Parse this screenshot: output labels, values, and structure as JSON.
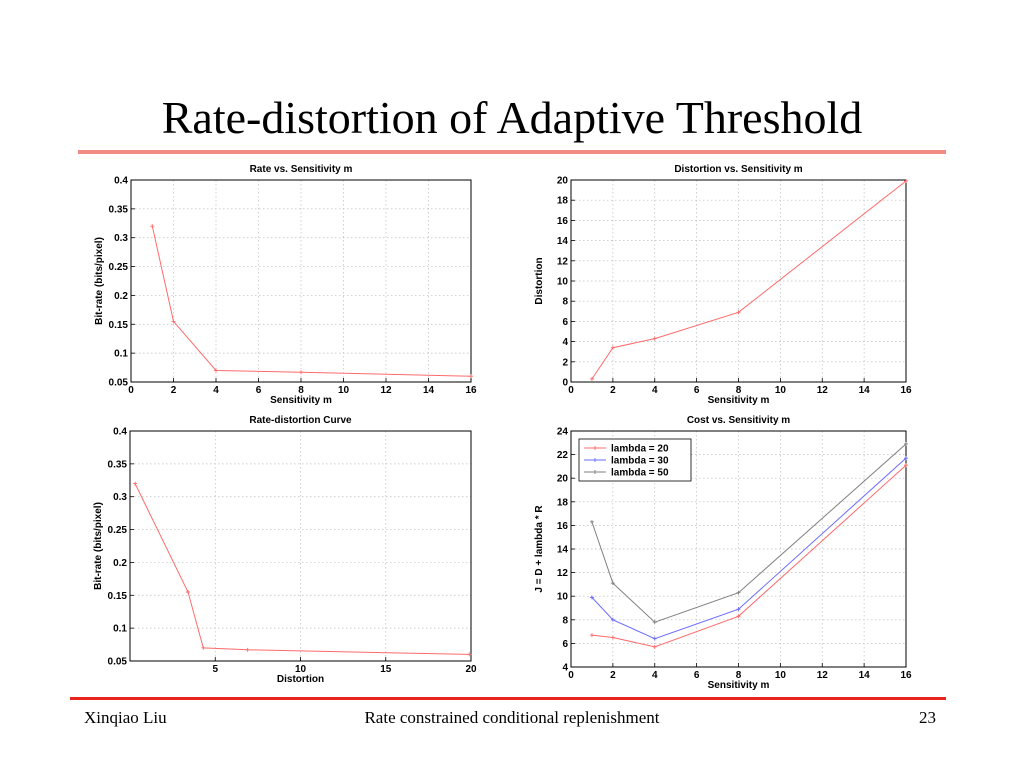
{
  "slide": {
    "title": "Rate-distortion of Adaptive Threshold",
    "footer_left": "Xinqiao Liu",
    "footer_center": "Rate constrained conditional replenishment",
    "footer_right": "23"
  },
  "chart_data": [
    {
      "type": "line",
      "title": "Rate vs. Sensitivity m",
      "xlabel": "Sensitivity m",
      "ylabel": "Bit-rate (bits/pixel)",
      "xlim": [
        0,
        16
      ],
      "ylim": [
        0.05,
        0.4
      ],
      "xticks": [
        0,
        2,
        4,
        6,
        8,
        10,
        12,
        14,
        16
      ],
      "yticks": [
        0.05,
        0.1,
        0.15,
        0.2,
        0.25,
        0.3,
        0.35,
        0.4
      ],
      "grid": true,
      "series": [
        {
          "color": "#ff6b6b",
          "x": [
            1,
            2,
            4,
            8,
            16
          ],
          "y": [
            0.32,
            0.155,
            0.07,
            0.067,
            0.06
          ]
        }
      ]
    },
    {
      "type": "line",
      "title": "Distortion vs. Sensitivity m",
      "xlabel": "Sensitivity m",
      "ylabel": "Distortion",
      "xlim": [
        0,
        16
      ],
      "ylim": [
        0,
        20
      ],
      "xticks": [
        0,
        2,
        4,
        6,
        8,
        10,
        12,
        14,
        16
      ],
      "yticks": [
        0,
        2,
        4,
        6,
        8,
        10,
        12,
        14,
        16,
        18,
        20
      ],
      "grid": true,
      "series": [
        {
          "color": "#ff6b6b",
          "x": [
            1,
            2,
            4,
            8,
            16
          ],
          "y": [
            0.3,
            3.4,
            4.3,
            6.9,
            19.9
          ]
        }
      ]
    },
    {
      "type": "line",
      "title": "Rate-distortion Curve",
      "xlabel": "Distortion",
      "ylabel": "Bit-rate (bits/pixel)",
      "xlim": [
        0,
        20
      ],
      "ylim": [
        0.05,
        0.4
      ],
      "xticks": [
        5,
        10,
        15,
        20
      ],
      "yticks": [
        0.05,
        0.1,
        0.15,
        0.2,
        0.25,
        0.3,
        0.35,
        0.4
      ],
      "grid": true,
      "series": [
        {
          "color": "#ff6b6b",
          "x": [
            0.3,
            3.4,
            4.3,
            6.9,
            19.9
          ],
          "y": [
            0.32,
            0.155,
            0.07,
            0.067,
            0.06
          ]
        }
      ]
    },
    {
      "type": "line",
      "title": "Cost vs. Sensitivity m",
      "xlabel": "Sensitivity m",
      "ylabel": "J = D + lambda * R",
      "xlim": [
        0,
        16
      ],
      "ylim": [
        4,
        24
      ],
      "xticks": [
        0,
        2,
        4,
        6,
        8,
        10,
        12,
        14,
        16
      ],
      "yticks": [
        4,
        6,
        8,
        10,
        12,
        14,
        16,
        18,
        20,
        22,
        24
      ],
      "grid": true,
      "legend": "top-left",
      "series": [
        {
          "name": "lambda = 20",
          "color": "#ff6b6b",
          "x": [
            1,
            2,
            4,
            8,
            16
          ],
          "y": [
            6.7,
            6.5,
            5.7,
            8.3,
            21.1
          ]
        },
        {
          "name": "lambda = 30",
          "color": "#6b6bff",
          "x": [
            1,
            2,
            4,
            8,
            16
          ],
          "y": [
            9.9,
            8.0,
            6.4,
            8.9,
            21.7
          ]
        },
        {
          "name": "lambda = 50",
          "color": "#808080",
          "x": [
            1,
            2,
            4,
            8,
            16
          ],
          "y": [
            16.3,
            11.1,
            7.8,
            10.3,
            22.9
          ]
        }
      ]
    }
  ]
}
